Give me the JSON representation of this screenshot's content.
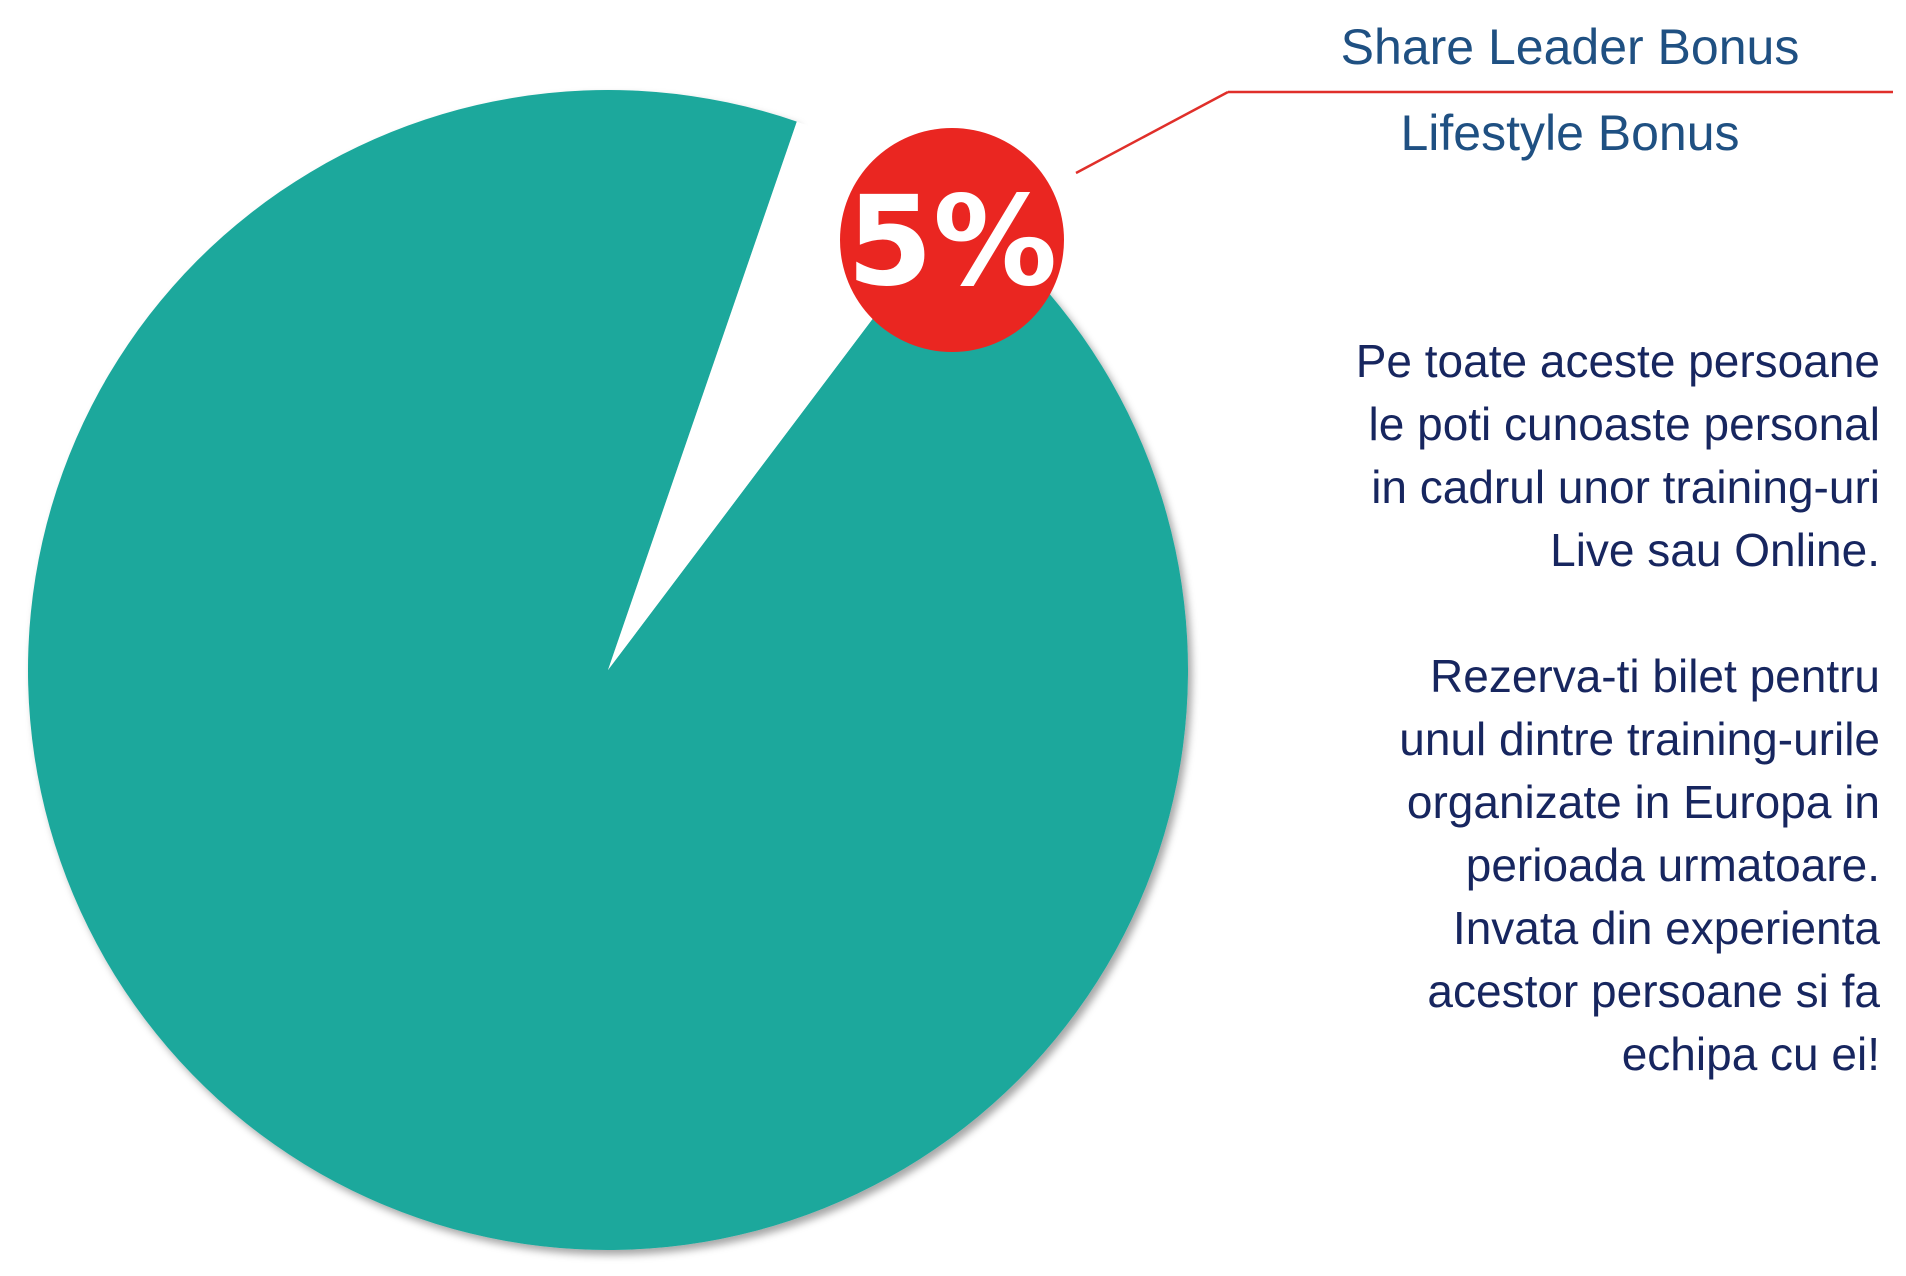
{
  "chart_data": {
    "type": "pie",
    "series": [
      {
        "name": "Share Leader Bonus",
        "value": 95,
        "color": "#1aa89c"
      },
      {
        "name": "Lifestyle Bonus",
        "value": 5,
        "color": "#ffffff"
      }
    ],
    "data_labels": [
      "5%"
    ],
    "legend": [
      "Share Leader Bonus",
      "Lifestyle Bonus"
    ],
    "legend_position": "top-right",
    "label_color": "#ea2621",
    "leader_line_color": "#e02f2a"
  },
  "text_panel": {
    "paragraph_1": "Pe toate aceste persoane\nle poti cunoaste personal\nin cadrul unor training-uri\nLive sau Online.",
    "paragraph_2": "Rezerva-ti bilet pentru\nunul dintre training-urile\norganizate in Europa in\nperioada urmatoare.\nInvata din experienta\nacestor persoane si fa\nechipa cu ei!"
  },
  "colors": {
    "legend_text": "#1f5082",
    "body_text": "#17265f"
  }
}
